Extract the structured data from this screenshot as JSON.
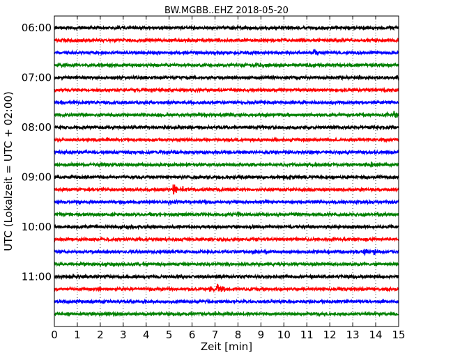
{
  "chart_data": {
    "type": "line",
    "title": "BW.MGBB..EHZ 2018-05-20",
    "xlabel": "Zeit  [min]",
    "ylabel": "UTC (Lokalzeit = UTC + 02:00)",
    "xlim": [
      0,
      15
    ],
    "x_ticks": [
      "0",
      "1",
      "2",
      "3",
      "4",
      "5",
      "6",
      "7",
      "8",
      "9",
      "10",
      "11",
      "12",
      "13",
      "14",
      "15"
    ],
    "y_ticks": [
      "06:00",
      "07:00",
      "08:00",
      "09:00",
      "10:00",
      "11:00"
    ],
    "grid": "dotted vertical lines at each minute",
    "colors": [
      "#000000",
      "#ff0000",
      "#0000ff",
      "#008000"
    ],
    "traces": [
      {
        "start": "06:00",
        "color": "#000000",
        "events": []
      },
      {
        "start": "06:15",
        "color": "#ff0000",
        "events": []
      },
      {
        "start": "06:30",
        "color": "#0000ff",
        "events": [
          {
            "t": 11.3,
            "amp": 0.8
          }
        ]
      },
      {
        "start": "06:45",
        "color": "#008000",
        "events": [
          {
            "t": 7.4,
            "amp": 0.3
          },
          {
            "t": 9.0,
            "amp": 0.25
          }
        ]
      },
      {
        "start": "07:00",
        "color": "#000000",
        "events": []
      },
      {
        "start": "07:15",
        "color": "#ff0000",
        "events": []
      },
      {
        "start": "07:30",
        "color": "#0000ff",
        "events": []
      },
      {
        "start": "07:45",
        "color": "#008000",
        "events": [
          {
            "t": 14.4,
            "amp": 0.6
          },
          {
            "t": 14.8,
            "amp": 0.7
          }
        ]
      },
      {
        "start": "08:00",
        "color": "#000000",
        "events": []
      },
      {
        "start": "08:15",
        "color": "#ff0000",
        "events": []
      },
      {
        "start": "08:30",
        "color": "#0000ff",
        "events": [
          {
            "t": 1.0,
            "amp": 0.4
          },
          {
            "t": 14.0,
            "amp": 0.3
          }
        ]
      },
      {
        "start": "08:45",
        "color": "#008000",
        "events": [
          {
            "t": 0.5,
            "amp": 0.35
          },
          {
            "t": 13.8,
            "amp": 0.6
          }
        ]
      },
      {
        "start": "09:00",
        "color": "#000000",
        "events": []
      },
      {
        "start": "09:15",
        "color": "#ff0000",
        "events": [
          {
            "t": 5.2,
            "amp": 1.3
          },
          {
            "t": 5.6,
            "amp": 0.5
          }
        ]
      },
      {
        "start": "09:30",
        "color": "#0000ff",
        "events": [
          {
            "t": 5.0,
            "amp": 0.5
          },
          {
            "t": 5.3,
            "amp": 0.4
          }
        ]
      },
      {
        "start": "09:45",
        "color": "#008000",
        "events": [
          {
            "t": 8.0,
            "amp": 0.5
          },
          {
            "t": 14.3,
            "amp": 0.25
          }
        ]
      },
      {
        "start": "10:00",
        "color": "#000000",
        "events": []
      },
      {
        "start": "10:15",
        "color": "#ff0000",
        "events": [
          {
            "t": 3.7,
            "amp": 0.5
          }
        ]
      },
      {
        "start": "10:30",
        "color": "#0000ff",
        "events": [
          {
            "t": 13.5,
            "amp": 0.6
          },
          {
            "t": 13.9,
            "amp": 0.8
          }
        ]
      },
      {
        "start": "10:45",
        "color": "#008000",
        "events": [
          {
            "t": 14.2,
            "amp": 0.4
          }
        ]
      },
      {
        "start": "11:00",
        "color": "#000000",
        "events": []
      },
      {
        "start": "11:15",
        "color": "#ff0000",
        "events": [
          {
            "t": 6.8,
            "amp": 0.6
          },
          {
            "t": 7.1,
            "amp": 1.0
          },
          {
            "t": 7.3,
            "amp": 0.8
          }
        ]
      },
      {
        "start": "11:30",
        "color": "#0000ff",
        "events": [
          {
            "t": 14.7,
            "amp": 0.2
          }
        ]
      },
      {
        "start": "11:45",
        "color": "#008000",
        "events": []
      }
    ]
  }
}
